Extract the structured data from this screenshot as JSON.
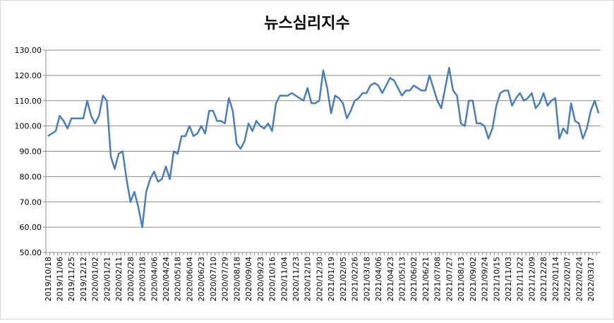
{
  "chart_data": {
    "type": "line",
    "title": "뉴스심리지수",
    "categories": [
      "2019/10/18",
      null,
      null,
      "2019/11/06",
      null,
      null,
      "2019/11/25",
      null,
      null,
      "2019/12/12",
      null,
      null,
      "2020/01/02",
      null,
      null,
      "2020/01/21",
      null,
      null,
      "2020/02/11",
      null,
      null,
      "2020/02/28",
      null,
      null,
      "2020/03/18",
      null,
      null,
      "2020/04/06",
      null,
      null,
      "2020/04/24",
      null,
      null,
      "2020/05/18",
      null,
      null,
      "2020/06/04",
      null,
      null,
      "2020/06/23",
      null,
      null,
      "2020/07/10",
      null,
      null,
      "2020/07/29",
      null,
      null,
      "2020/08/18",
      null,
      null,
      "2020/09/04",
      null,
      null,
      "2020/09/23",
      null,
      null,
      "2020/10/16",
      null,
      null,
      "2020/11/04",
      null,
      null,
      "2020/11/23",
      null,
      null,
      "2020/12/10",
      null,
      null,
      "2020/12/30",
      null,
      null,
      "2021/01/19",
      null,
      null,
      "2021/02/05",
      null,
      null,
      "2021/02/26",
      null,
      null,
      "2021/03/18",
      null,
      null,
      "2021/04/06",
      null,
      null,
      "2021/04/23",
      null,
      null,
      "2021/05/13",
      null,
      null,
      "2021/06/02",
      null,
      null,
      "2021/06/21",
      null,
      null,
      "2021/07/08",
      null,
      null,
      "2021/07/27",
      null,
      null,
      "2021/08/13",
      null,
      null,
      "2021/09/02",
      null,
      null,
      "2021/09/24",
      null,
      null,
      "2021/10/15",
      null,
      null,
      "2021/11/03",
      null,
      null,
      "2021/11/22",
      null,
      null,
      "2021/12/09",
      null,
      null,
      "2021/12/28",
      null,
      null,
      "2022/01/14",
      null,
      null,
      "2022/02/07",
      null,
      null,
      "2022/02/24",
      null,
      null,
      "2022/03/17",
      null,
      null
    ],
    "values": [
      96,
      97,
      98,
      104,
      102,
      99,
      103,
      103,
      103,
      103,
      110,
      104,
      101,
      104,
      112,
      110,
      88,
      83,
      89,
      90,
      79,
      70,
      74,
      68,
      60,
      74,
      79,
      82,
      78,
      79,
      84,
      79,
      90,
      89,
      96,
      96,
      100,
      96,
      97,
      100,
      97,
      106,
      106,
      102,
      102,
      101,
      111,
      106,
      93,
      91,
      94,
      101,
      98,
      102,
      100,
      99,
      101,
      98,
      109,
      112,
      112,
      112,
      113,
      112,
      111,
      110,
      115,
      109,
      109,
      110,
      122,
      115,
      105,
      112,
      111,
      109,
      103,
      106,
      110,
      111,
      113,
      113,
      116,
      117,
      116,
      113,
      116,
      119,
      118,
      115,
      112,
      114,
      114,
      116,
      115,
      114,
      114,
      120,
      115,
      110,
      107,
      115,
      123,
      114,
      112,
      101,
      100,
      110,
      110,
      101,
      101,
      100,
      95,
      99,
      108,
      113,
      114,
      114,
      108,
      111,
      113,
      110,
      111,
      113,
      107,
      109,
      113,
      108,
      110,
      111,
      95,
      99,
      97,
      109,
      102,
      101,
      95,
      99,
      106,
      110,
      105
    ],
    "color": "#4a7ebb",
    "ylim": [
      50,
      130
    ],
    "yticks": [
      {
        "value": 50,
        "label": "50.00"
      },
      {
        "value": 60,
        "label": "60.00"
      },
      {
        "value": 70,
        "label": "70.00"
      },
      {
        "value": 80,
        "label": "80.00"
      },
      {
        "value": 90,
        "label": "90.00"
      },
      {
        "value": 100,
        "label": "100.00"
      },
      {
        "value": 110,
        "label": "110.00"
      },
      {
        "value": 120,
        "label": "120.00"
      },
      {
        "value": 130,
        "label": "130.00"
      }
    ],
    "grid": true
  }
}
